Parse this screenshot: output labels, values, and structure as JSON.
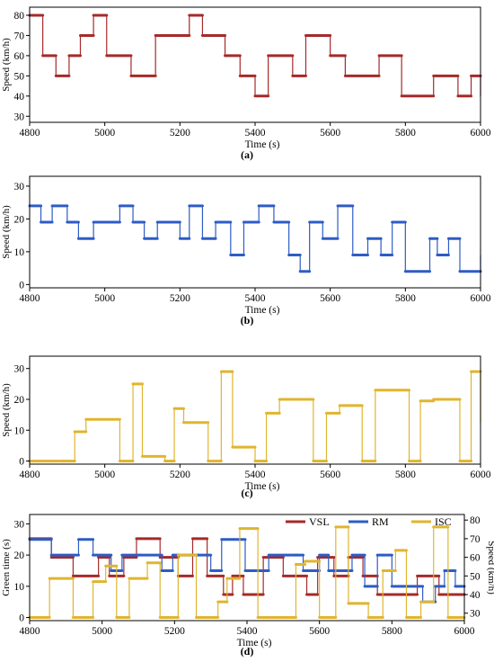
{
  "chart_data": [
    {
      "type": "line",
      "step": true,
      "caption": "(a)",
      "color": "#a52a2a",
      "xlabel": "Time (s)",
      "ylabel": "Speed (km/h)",
      "xlim": [
        4800,
        6000
      ],
      "ylim": [
        27,
        84
      ],
      "xticks": [
        4800,
        5000,
        5200,
        5400,
        5600,
        5800,
        6000
      ],
      "yticks": [
        30,
        40,
        50,
        60,
        70,
        80
      ],
      "grid": false,
      "series": [
        {
          "x": [
            4800,
            4835,
            4870,
            4905,
            4935,
            4970,
            5005,
            5070,
            5135,
            5225,
            5260,
            5320,
            5360,
            5400,
            5435,
            5500,
            5535,
            5600,
            5640,
            5730,
            5790,
            5875,
            5940,
            5975,
            6000
          ],
          "y": [
            80,
            60,
            50,
            60,
            70,
            80,
            60,
            50,
            70,
            80,
            70,
            60,
            50,
            40,
            60,
            50,
            70,
            60,
            50,
            60,
            40,
            50,
            40,
            50,
            40
          ]
        }
      ]
    },
    {
      "type": "line",
      "step": true,
      "caption": "(b)",
      "color": "#2e5cc5",
      "xlabel": "Time (s)",
      "ylabel": "Speed (km/h)",
      "xlim": [
        4800,
        6000
      ],
      "ylim": [
        -1,
        33
      ],
      "xticks": [
        4800,
        5000,
        5200,
        5400,
        5600,
        5800,
        6000
      ],
      "yticks": [
        0,
        10,
        20,
        30
      ],
      "grid": false,
      "series": [
        {
          "x": [
            4800,
            4830,
            4860,
            4900,
            4930,
            4970,
            5040,
            5075,
            5105,
            5140,
            5200,
            5225,
            5260,
            5295,
            5335,
            5370,
            5410,
            5450,
            5490,
            5520,
            5545,
            5580,
            5620,
            5660,
            5700,
            5735,
            5765,
            5800,
            5865,
            5885,
            5915,
            5945,
            6000
          ],
          "y": [
            24,
            19,
            24,
            19,
            14,
            19,
            24,
            19,
            14,
            19,
            14,
            24,
            14,
            19,
            9,
            19,
            24,
            19,
            9,
            4,
            19,
            14,
            24,
            9,
            14,
            9,
            19,
            4,
            14,
            9,
            14,
            4,
            9
          ]
        }
      ]
    },
    {
      "type": "line",
      "step": true,
      "caption": "(c)",
      "color": "#e0b52e",
      "xlabel": "Time (s)",
      "ylabel": "Speed (km/h)",
      "xlim": [
        4800,
        6000
      ],
      "ylim": [
        -1,
        34
      ],
      "xticks": [
        4800,
        5000,
        5200,
        5400,
        5600,
        5800,
        6000
      ],
      "yticks": [
        0,
        10,
        20,
        30
      ],
      "grid": false,
      "series": [
        {
          "x": [
            4800,
            4890,
            4920,
            4950,
            5040,
            5075,
            5100,
            5160,
            5185,
            5210,
            5275,
            5310,
            5340,
            5400,
            5430,
            5465,
            5555,
            5590,
            5625,
            5685,
            5720,
            5810,
            5840,
            5875,
            5945,
            5975,
            6000
          ],
          "y": [
            0,
            0,
            9.5,
            13.5,
            0,
            25,
            1.5,
            0,
            17,
            12.5,
            0,
            29,
            4.5,
            0,
            15.5,
            20,
            0,
            15.5,
            18,
            0,
            23,
            0,
            19.5,
            20,
            0,
            29,
            12.5
          ]
        }
      ]
    },
    {
      "type": "line",
      "step": true,
      "caption": "(d)",
      "xlabel": "Time (s)",
      "ylabel": "Green time (s)",
      "y2label": "Speed (km/h)",
      "xlim": [
        4800,
        6000
      ],
      "ylim": [
        -1,
        33
      ],
      "y2lim": [
        26,
        83
      ],
      "xticks": [
        4800,
        5000,
        5200,
        5400,
        5600,
        5800,
        6000
      ],
      "yticks": [
        0,
        10,
        20,
        30
      ],
      "y2ticks": [
        30,
        40,
        50,
        60,
        70,
        80
      ],
      "grid": false,
      "legend": "top-right",
      "series": [
        {
          "name": "VSL",
          "axis": "right",
          "color": "#a52a2a",
          "x": [
            4800,
            4860,
            4920,
            4990,
            5020,
            5060,
            5095,
            5160,
            5210,
            5250,
            5290,
            5335,
            5360,
            5390,
            5445,
            5500,
            5565,
            5595,
            5640,
            5680,
            5720,
            5760,
            5870,
            5930,
            6000
          ],
          "y": [
            70,
            60,
            50,
            60,
            50,
            60,
            70,
            60,
            50,
            70,
            50,
            40,
            50,
            40,
            60,
            50,
            40,
            60,
            50,
            60,
            50,
            40,
            50,
            40,
            40
          ]
        },
        {
          "name": "RM",
          "axis": "left",
          "color": "#2e5cc5",
          "x": [
            4800,
            4860,
            4935,
            4975,
            5025,
            5055,
            5105,
            5165,
            5195,
            5250,
            5300,
            5330,
            5395,
            5460,
            5535,
            5555,
            5600,
            5625,
            5690,
            5725,
            5760,
            5800,
            5840,
            5885,
            5920,
            5945,
            5975,
            6000
          ],
          "y": [
            25,
            20,
            25,
            20,
            15,
            20,
            20,
            15,
            20,
            20,
            15,
            25,
            15,
            20,
            20,
            15,
            20,
            15,
            20,
            10,
            20,
            10,
            10,
            5,
            10,
            15,
            10,
            10
          ]
        },
        {
          "name": "ISC",
          "axis": "left",
          "color": "#e0b52e",
          "x": [
            4800,
            4855,
            4920,
            4975,
            5010,
            5040,
            5075,
            5125,
            5160,
            5210,
            5260,
            5320,
            5345,
            5380,
            5430,
            5535,
            5560,
            5600,
            5645,
            5680,
            5735,
            5775,
            5810,
            5840,
            5880,
            5915,
            5955,
            6000
          ],
          "y": [
            0,
            12.5,
            0,
            11.5,
            16.5,
            0,
            12.5,
            17.5,
            0,
            20,
            0,
            5,
            12.5,
            28.5,
            0,
            17,
            18,
            0,
            29,
            4.5,
            0,
            15,
            21.5,
            0,
            5,
            29,
            0,
            0
          ]
        }
      ]
    }
  ]
}
